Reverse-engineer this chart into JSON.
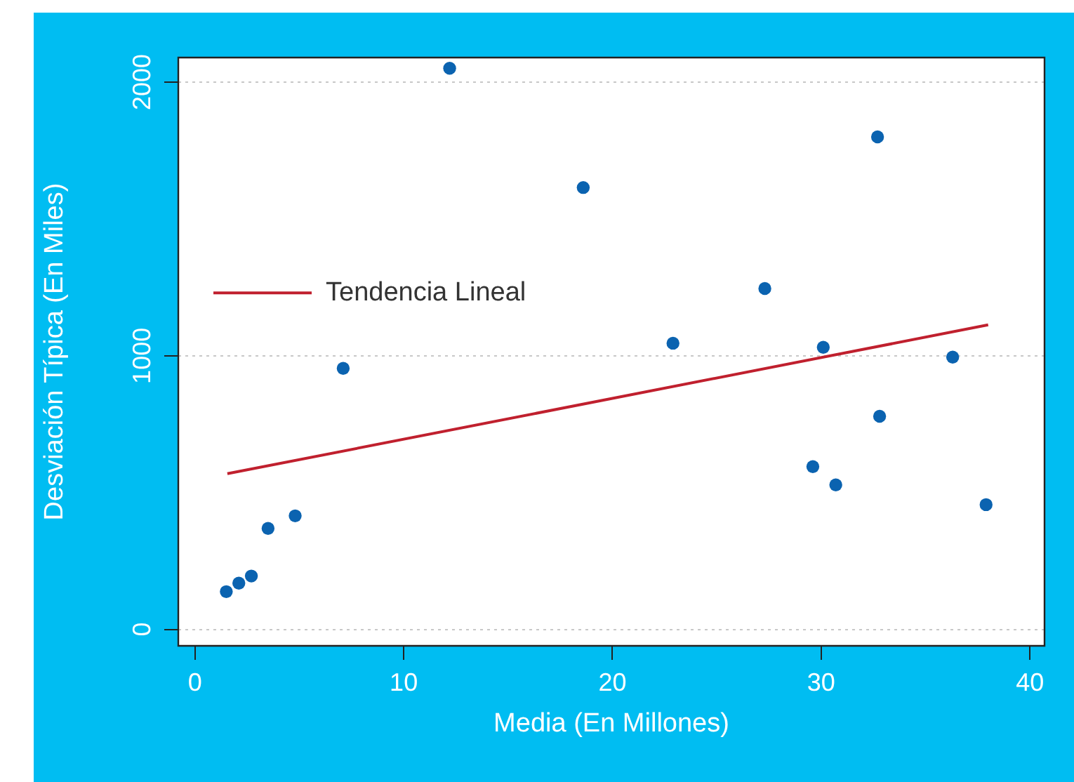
{
  "chart_data": {
    "type": "scatter",
    "xlabel": "Media (En Millones)",
    "ylabel": "Desviación Típica (En Miles)",
    "xlim": [
      -0.8,
      40.7
    ],
    "ylim": [
      -60,
      2090
    ],
    "xticks": [
      0,
      10,
      20,
      30,
      40
    ],
    "yticks": [
      0,
      1000,
      2000
    ],
    "grid": "y",
    "legend": "left",
    "marker": "circle",
    "series": [
      {
        "color": "#0b63b0",
        "x": [
          1.5,
          2.1,
          2.7,
          3.5,
          4.8,
          7.1,
          12.2,
          18.6,
          22.9,
          27.3,
          29.6,
          30.1,
          30.7,
          32.7,
          32.8,
          36.3,
          37.9
        ],
        "values": [
          138,
          169,
          195,
          369,
          415,
          954,
          2051,
          1615,
          1046,
          1246,
          595,
          1031,
          528,
          1800,
          779,
          995,
          456
        ]
      },
      {
        "type": "line",
        "name": "Tendencia Lineal",
        "color": "#c0202e",
        "marker": "none",
        "x": [
          1.55,
          38.0
        ],
        "values": [
          569,
          1113
        ]
      }
    ]
  }
}
